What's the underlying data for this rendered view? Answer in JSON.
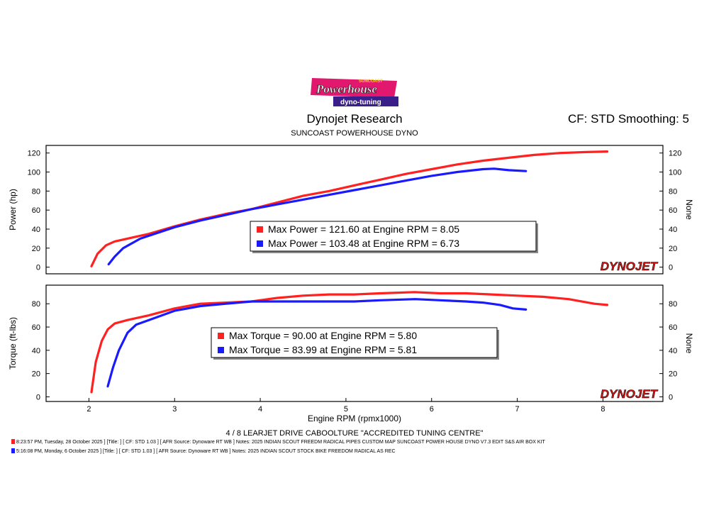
{
  "header": {
    "logo_text_top": "SUNCOAST",
    "logo_text_main": "Powerhouse",
    "logo_text_bottom": "dyno-tuning",
    "title": "Dynojet Research",
    "subtitle": "SUNCOAST POWERHOUSE DYNO",
    "cf_smoothing": "CF: STD Smoothing: 5"
  },
  "footer": {
    "center": "4 / 8 LEARJET DRIVE CABOOLTURE \"ACCREDITED TUNING CENTRE\"",
    "runs": [
      {
        "color": "#ff2020",
        "text": "8:23:57 PM, Tuesday, 28 October 2025 ] [Title: ]  [ CF: STD 1.03 ] [ AFR Source: Dynoware RT WB ] Notes: 2025 INDIAN SCOUT FREEDM RADICAL PIPES CUSTOM MAP SUNCOAST POWER HOUSE DYNO V7.3 EDIT S&S AIR BOX KIT"
      },
      {
        "color": "#1a1aff",
        "text": "5:16:08 PM, Monday, 6 October 2025 ] [Title: ]  [ CF: STD 1.03 ] [ AFR Source: Dynoware RT WB ] Notes: 2025 INDIAN SCOUT STOCK BIKE FREEDOM RADICAL AS REC"
      }
    ]
  },
  "chart_data": [
    {
      "type": "line",
      "ylabel": "Power (hp)",
      "ylabel_right": "None",
      "xlim": [
        1.5,
        8.7
      ],
      "ylim": [
        -7,
        128
      ],
      "yticks": [
        0,
        20,
        40,
        60,
        80,
        100,
        120
      ],
      "watermark": "DYNOJET",
      "legend": [
        {
          "color": "#ff2020",
          "text": "Max Power = 121.60 at Engine RPM = 8.05"
        },
        {
          "color": "#1a1aff",
          "text": "Max Power = 103.48 at Engine RPM = 6.73"
        }
      ],
      "series": [
        {
          "color": "#ff2020",
          "x": [
            2.03,
            2.1,
            2.2,
            2.3,
            2.5,
            2.7,
            3.0,
            3.3,
            3.6,
            3.9,
            4.2,
            4.5,
            4.8,
            5.1,
            5.4,
            5.7,
            6.0,
            6.3,
            6.6,
            6.9,
            7.2,
            7.5,
            7.8,
            8.05
          ],
          "y": [
            1,
            14,
            23,
            27,
            31,
            35,
            43,
            50,
            56,
            61,
            68,
            75,
            80,
            86,
            92,
            98,
            103,
            108,
            112,
            115,
            118,
            120,
            121,
            121.6
          ]
        },
        {
          "color": "#1a1aff",
          "x": [
            2.23,
            2.3,
            2.4,
            2.6,
            2.8,
            3.0,
            3.3,
            3.6,
            3.9,
            4.2,
            4.5,
            4.8,
            5.1,
            5.4,
            5.7,
            6.0,
            6.3,
            6.6,
            6.73,
            6.9,
            7.1
          ],
          "y": [
            3,
            11,
            20,
            30,
            36,
            42,
            49,
            55,
            61,
            66,
            71,
            76,
            81,
            86,
            91,
            96,
            100,
            103,
            103.5,
            102,
            101
          ]
        }
      ]
    },
    {
      "type": "line",
      "ylabel": "Torque (ft-lbs)",
      "ylabel_right": "None",
      "xlabel": "Engine RPM (rpmx1000)",
      "xlim": [
        1.5,
        8.7
      ],
      "ylim": [
        -4,
        96
      ],
      "xticks": [
        2,
        3,
        4,
        5,
        6,
        7,
        8
      ],
      "yticks": [
        0,
        20,
        40,
        60,
        80
      ],
      "watermark": "DYNOJET",
      "legend": [
        {
          "color": "#ff2020",
          "text": "Max Torque = 90.00 at Engine RPM = 5.80"
        },
        {
          "color": "#1a1aff",
          "text": "Max Torque = 83.99 at Engine RPM = 5.81"
        }
      ],
      "series": [
        {
          "color": "#ff2020",
          "x": [
            2.03,
            2.08,
            2.15,
            2.22,
            2.3,
            2.45,
            2.7,
            3.0,
            3.3,
            3.6,
            3.9,
            4.2,
            4.5,
            4.8,
            5.1,
            5.4,
            5.8,
            6.1,
            6.4,
            6.7,
            7.0,
            7.3,
            7.6,
            7.9,
            8.05
          ],
          "y": [
            4,
            30,
            48,
            58,
            63,
            66,
            70,
            76,
            80,
            81,
            82,
            85,
            87,
            88,
            88,
            89,
            90,
            89,
            89,
            88,
            87,
            86,
            84,
            80,
            79
          ]
        },
        {
          "color": "#1a1aff",
          "x": [
            2.22,
            2.28,
            2.35,
            2.45,
            2.55,
            2.7,
            3.0,
            3.3,
            3.6,
            3.9,
            4.2,
            4.5,
            4.8,
            5.1,
            5.4,
            5.81,
            6.1,
            6.4,
            6.6,
            6.8,
            6.95,
            7.1
          ],
          "y": [
            9,
            25,
            40,
            55,
            62,
            66,
            74,
            78,
            80,
            82,
            82,
            82,
            82,
            82,
            83,
            84,
            83,
            82,
            81,
            79,
            76,
            75
          ]
        }
      ]
    }
  ]
}
